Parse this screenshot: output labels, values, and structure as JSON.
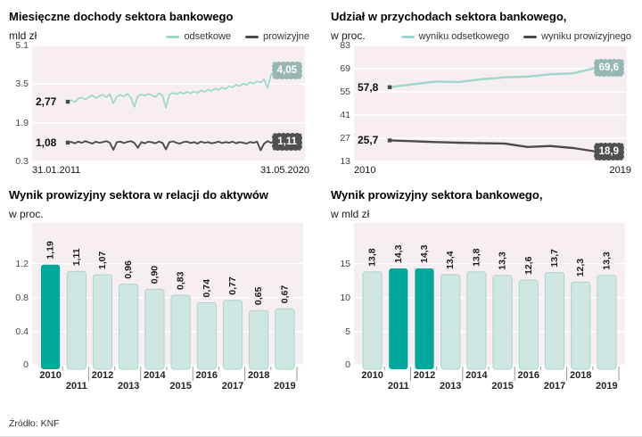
{
  "page": {
    "source": "Źródło: KNF"
  },
  "colors": {
    "teal_line": "#9ed6cc",
    "dark_line": "#4b4b4b",
    "bar_light_fill": "#cfe7e2",
    "bar_light_stroke": "#aed2cb",
    "bar_accent": "#00a79b",
    "plot_bg": "#f7eef2",
    "grid": "#ffffff",
    "badge_teal": "#96b7b1",
    "badge_dark": "#4f4f4f"
  },
  "chart_data": [
    {
      "type": "line",
      "title": "Miesięczne dochody sektora bankowego",
      "subtitle": "mld zł",
      "ylim": [
        0.3,
        5.1
      ],
      "yticks": [
        5.1,
        3.5,
        1.9,
        0.3
      ],
      "x_axis": {
        "start": "31.01.2011",
        "end": "31.05.2020"
      },
      "series": [
        {
          "name": "odsetkowe",
          "color_key": "teal_line",
          "stroke_width": 1.7,
          "start_label": "2,77",
          "end_label": "4,05",
          "badge": "teal",
          "values": [
            2.77,
            2.84,
            2.76,
            2.9,
            2.95,
            2.86,
            2.96,
            3.04,
            2.92,
            3.0,
            3.06,
            2.96,
            3.08,
            2.7,
            2.98,
            3.06,
            2.98,
            3.1,
            2.94,
            2.56,
            3.0,
            3.08,
            3.02,
            3.1,
            3.04,
            2.96,
            3.12,
            3.04,
            2.52,
            3.06,
            3.14,
            3.08,
            3.16,
            3.1,
            3.18,
            3.12,
            3.2,
            3.14,
            3.24,
            3.18,
            3.28,
            3.22,
            3.32,
            3.26,
            3.36,
            3.3,
            3.42,
            3.36,
            3.48,
            3.42,
            3.52,
            3.46,
            3.58,
            3.52,
            3.62,
            3.56,
            3.7,
            3.34,
            3.92,
            4.05
          ]
        },
        {
          "name": "prowizyjne",
          "color_key": "dark_line",
          "stroke_width": 1.9,
          "start_label": "1,08",
          "end_label": "1,11",
          "badge": "dark",
          "values": [
            1.08,
            1.11,
            1.05,
            1.12,
            1.07,
            1.14,
            1.09,
            1.04,
            1.12,
            1.07,
            1.1,
            1.14,
            1.07,
            0.78,
            1.1,
            1.12,
            1.06,
            1.11,
            1.14,
            1.07,
            0.86,
            1.1,
            1.05,
            1.12,
            1.09,
            1.05,
            1.12,
            1.07,
            0.8,
            1.1,
            1.13,
            1.07,
            1.04,
            1.1,
            1.12,
            1.06,
            1.1,
            1.04,
            1.12,
            1.07,
            1.1,
            1.05,
            1.08,
            1.12,
            1.06,
            1.1,
            1.07,
            1.12,
            1.05,
            1.1,
            1.07,
            1.04,
            1.1,
            1.07,
            1.12,
            0.76,
            1.04,
            1.14,
            1.07,
            1.11
          ]
        }
      ]
    },
    {
      "type": "line",
      "title": "Udział w przychodach sektora bankowego,",
      "subtitle": "w proc.",
      "ylim": [
        13,
        83
      ],
      "yticks": [
        83,
        69,
        55,
        41,
        27,
        13
      ],
      "x_axis": {
        "start": "2010",
        "end": "2019"
      },
      "series": [
        {
          "name": "wyniku odsetkowego",
          "color_key": "teal_line",
          "stroke_width": 2.4,
          "start_label": "57,8",
          "end_label": "69,6",
          "badge": "teal",
          "values": [
            57.8,
            59.6,
            61.2,
            61.0,
            62.6,
            63.8,
            64.2,
            65.6,
            66.2,
            69.6
          ]
        },
        {
          "name": "wyniku prowizyjnego",
          "color_key": "dark_line",
          "stroke_width": 2.4,
          "start_label": "25,7",
          "end_label": "18,9",
          "badge": "dark",
          "values": [
            25.7,
            25.2,
            24.7,
            24.3,
            24.0,
            23.8,
            21.7,
            22.3,
            21.1,
            18.9
          ]
        }
      ]
    },
    {
      "type": "bar",
      "title": "Wynik prowizyjny sektora w relacji do aktywów",
      "subtitle": "w proc.",
      "categories": [
        "2010",
        "2011",
        "2012",
        "2013",
        "2014",
        "2015",
        "2016",
        "2017",
        "2018",
        "2019"
      ],
      "values": [
        1.19,
        1.11,
        1.07,
        0.96,
        0.9,
        0.83,
        0.74,
        0.77,
        0.65,
        0.67
      ],
      "bar_labels": [
        "1,19",
        "1,11",
        "1,07",
        "0,96",
        "0,90",
        "0,83",
        "0,74",
        "0,77",
        "0,65",
        "0,67"
      ],
      "highlight_indexes": [
        0
      ],
      "yticks": [
        1.2,
        0.8,
        0.4,
        0
      ],
      "ytick_labels": [
        "1.2",
        "0.8",
        "0.4",
        "0"
      ],
      "ylim": [
        0,
        1.68
      ]
    },
    {
      "type": "bar",
      "title": "Wynik prowizyjny sektora bankowego,",
      "subtitle": "w mld zł",
      "categories": [
        "2010",
        "2011",
        "2012",
        "2013",
        "2014",
        "2015",
        "2016",
        "2017",
        "2018",
        "2019"
      ],
      "values": [
        13.8,
        14.3,
        14.3,
        13.4,
        13.8,
        13.3,
        12.6,
        13.7,
        12.3,
        13.3
      ],
      "bar_labels": [
        "13,8",
        "14,3",
        "14,3",
        "13,4",
        "13,8",
        "13,3",
        "12,6",
        "13,7",
        "12,3",
        "13,3"
      ],
      "highlight_indexes": [
        1,
        2
      ],
      "yticks": [
        15,
        10,
        5,
        0
      ],
      "ytick_labels": [
        "15",
        "10",
        "5",
        "0"
      ],
      "ylim": [
        0,
        21
      ]
    }
  ]
}
